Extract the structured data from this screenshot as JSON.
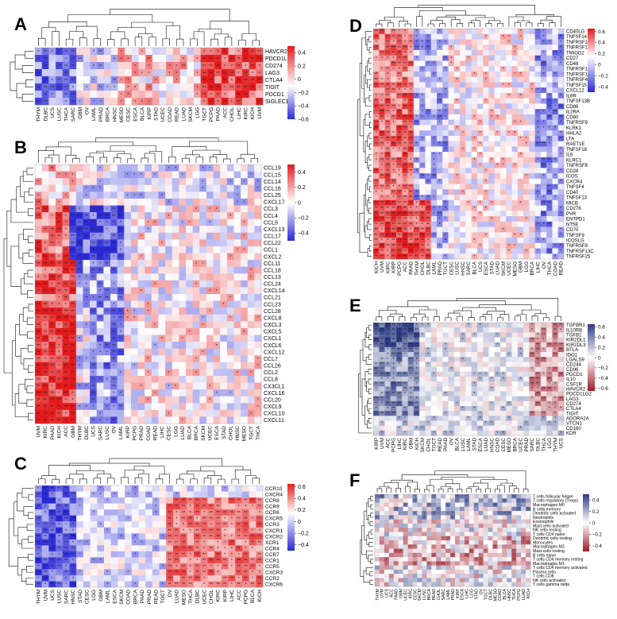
{
  "cancers": [
    "ACC",
    "BLCA",
    "BRCA",
    "CESC",
    "CHOL",
    "COAD",
    "DLBC",
    "ESCA",
    "GBM",
    "HNSC",
    "KICH",
    "KIRC",
    "KIRP",
    "LAML",
    "LGG",
    "LIHC",
    "LUAD",
    "LUSC",
    "MESO",
    "OV",
    "PAAD",
    "PCPG",
    "PRAD",
    "READ",
    "SARC",
    "SKCM",
    "STAD",
    "TGCT",
    "THCA",
    "THYM",
    "UCEC",
    "UCS",
    "UVM"
  ],
  "colors": {
    "red": "#e31a1c",
    "blue": "#2b2bd6",
    "white": "#ffffff",
    "navy": "#2c3b84",
    "crimson": "#9e1a2a"
  },
  "chart_data": [
    {
      "id": "A",
      "type": "heatmap",
      "letter": "A",
      "cols": [
        "THYM",
        "DLBC",
        "UCS",
        "LUSC",
        "THCA",
        "SARC",
        "GBM",
        "OV",
        "LAML",
        "PRAD",
        "BRCA",
        "HNSC",
        "MESO",
        "CESC",
        "ESCA",
        "BLCA",
        "KIRP",
        "STAD",
        "UCEC",
        "COAD",
        "READ",
        "LUAD",
        "SKCM",
        "LGG",
        "TGCT",
        "PCPG",
        "PAAD",
        "ACC",
        "CHOL",
        "LIHC",
        "KIRC",
        "KICH",
        "UVM"
      ],
      "rows": [
        "HAVCR2",
        "PDCD1LG2",
        "CD274",
        "LAG3",
        "CTLA4",
        "TIGIT",
        "PDCD1",
        "SIGLEC15"
      ],
      "legend": {
        "ticks": [
          "0.4",
          "0.2",
          "0",
          "−0.2",
          "−0.4",
          "−0.6"
        ]
      },
      "ylim": [
        -0.6,
        0.5
      ]
    },
    {
      "id": "B",
      "type": "heatmap",
      "letter": "B",
      "cols": [
        "UVM",
        "KIRC",
        "PAAD",
        "KICH",
        "ACC",
        "GBM",
        "THYM",
        "DLBC",
        "UCS",
        "SARC",
        "LUSC",
        "OV",
        "LAML",
        "KIRP",
        "PCPG",
        "PRAD",
        "COAD",
        "READ",
        "LIHC",
        "CESC",
        "LGG",
        "LUAD",
        "BLCA",
        "BRCA",
        "SKCM",
        "UCEC",
        "ESCA",
        "STAD",
        "CHOL",
        "HNSC",
        "MESO",
        "TGCT",
        "THCA"
      ],
      "rows": [
        "CCL19",
        "CCL15",
        "CCL14",
        "CCL16",
        "CCL25",
        "CXCL17",
        "CCL3",
        "CCL4",
        "CCL5",
        "CXCL13",
        "CCL17",
        "CCL22",
        "CCL1",
        "CXCL2",
        "CCL11",
        "CCL18",
        "CCL13",
        "CCL24",
        "CXCL14",
        "CCL21",
        "CCL23",
        "CCL28",
        "CXCL8",
        "CXCL3",
        "CXCL5",
        "CXCL1",
        "CXCL6",
        "CXCL12",
        "CCL7",
        "CCL26",
        "CCL2",
        "CCL8",
        "CX3CL1",
        "CXCL16",
        "CCL20",
        "CXCL9",
        "CXCL10",
        "CXCL11"
      ],
      "legend": {
        "ticks": [
          "0.4",
          "0.2",
          "0",
          "−0.2",
          "−0.4"
        ]
      },
      "ylim": [
        -0.5,
        0.5
      ]
    },
    {
      "id": "C",
      "type": "heatmap",
      "letter": "C",
      "cols": [
        "THYM",
        "UVM",
        "UCS",
        "LUSC",
        "SARC",
        "HNSC",
        "STAD",
        "CESC",
        "LGG",
        "GBM",
        "LAML",
        "ESCA",
        "SKCM",
        "COAD",
        "BRCA",
        "PAAD",
        "PRAD",
        "READ",
        "TGCT",
        "OV",
        "LUAD",
        "MESO",
        "THCA",
        "DLBC",
        "UCEC",
        "CHOL",
        "KIRC",
        "KIRP",
        "LIHC",
        "ACC",
        "PCPG",
        "BLCA",
        "KICH"
      ],
      "rows": [
        "CCR10",
        "CXCR4",
        "CCR8",
        "CCR9",
        "CCR6",
        "CXCR5",
        "CCR3",
        "CXCR1",
        "CXCR2",
        "XCR1",
        "CCR4",
        "CCR7",
        "CCR1",
        "CCR5",
        "CXCR3",
        "CCR2",
        "CXCR6"
      ],
      "legend": {
        "ticks": [
          "0.6",
          "0.4",
          "0.2",
          "0",
          "−0.2",
          "−0.4"
        ]
      },
      "ylim": [
        -0.5,
        0.65
      ]
    },
    {
      "id": "D",
      "type": "heatmap",
      "letter": "D",
      "cols": [
        "KICH",
        "UVM",
        "KIRC",
        "KIRP",
        "PCPG",
        "ACC",
        "PAAD",
        "THYM",
        "CHOL",
        "DLBC",
        "LAML",
        "PRAD",
        "TGCT",
        "CESC",
        "LUSC",
        "HNSC",
        "SARC",
        "BLCA",
        "UCS",
        "ESCA",
        "STAD",
        "LUAD",
        "SKCM",
        "UCEC",
        "MESO",
        "GBM",
        "LGG",
        "BRCA",
        "LIHC",
        "OV",
        "THCA",
        "COAD",
        "READ"
      ],
      "rows": [
        "CD40LG",
        "TNFSF14",
        "TNFRSF13B",
        "TNFRSF17",
        "TMIGD2",
        "CD27",
        "CD48",
        "TNFRSF14",
        "TNFRSF18",
        "TNFRSF4",
        "TNFSF15",
        "CXCL12",
        "IL6R",
        "TNFSF13B",
        "CD86",
        "IL2RA",
        "CD80",
        "TNFRSF9",
        "KLRK1",
        "HHLA2",
        "LTA",
        "RAET1E",
        "TNFSF18",
        "IL6",
        "KLRC1",
        "TNFRSF8",
        "CD28",
        "ICOS",
        "CXCR4",
        "TNFSF4",
        "CD40",
        "TNFSF13",
        "MICB",
        "CD276",
        "PVR",
        "ENTPD1",
        "NT5E",
        "CD70",
        "TNFSF9",
        "ICOSLG",
        "TNFRSF8",
        "TNFRSF13C",
        "TNFRSF25"
      ],
      "legend": {
        "ticks": [
          "0.6",
          "0.4",
          "0.2",
          "0",
          "−0.2",
          "−0.4"
        ]
      },
      "ylim": [
        -0.5,
        0.65
      ]
    },
    {
      "id": "E",
      "type": "heatmap",
      "letter": "E",
      "cols": [
        "KIRP",
        "UVM",
        "ACC",
        "PCPG",
        "LIHC",
        "KIRC",
        "GBM",
        "KICH",
        "SKCM",
        "CHOL",
        "TGCT",
        "READ",
        "PAAD",
        "OV",
        "BLCA",
        "LUSC",
        "LAML",
        "STAD",
        "ESCA",
        "LUAD",
        "HNSC",
        "COAD",
        "CESC",
        "MESO",
        "BRCA",
        "UCEC",
        "PRAD",
        "SARC",
        "DLBC",
        "THCA",
        "LGG",
        "THYM",
        "UCS"
      ],
      "rows": [
        "TGFBR1",
        "IL10RB",
        "TGFB1",
        "KIR2DL1",
        "KIR2DL3",
        "BTLA",
        "IDO1",
        "LGALS9",
        "CD244",
        "CD96",
        "PDCD1",
        "IL10",
        "CSF1R",
        "HAVCR2",
        "PDCD1LG2",
        "LAG3",
        "CD274",
        "CTLA4",
        "TIGIT",
        "ADORA2A",
        "VTCN1",
        "CD160",
        "KDR"
      ],
      "legend": {
        "ticks": [
          "0.6",
          "0.4",
          "0.2",
          "0",
          "−0.2",
          "−0.4",
          "−0.6"
        ]
      },
      "ylim": [
        -0.65,
        0.65
      ]
    },
    {
      "id": "F",
      "type": "heatmap",
      "letter": "F",
      "cols": [
        "THYM",
        "UVM",
        "UCS",
        "ACC",
        "PAAD",
        "GBM",
        "UCEC",
        "KIRC",
        "CESC",
        "SKCM",
        "LUSC",
        "BRCA",
        "READ",
        "CHOL",
        "SARC",
        "LAML",
        "PRAD",
        "KIRP",
        "ESCA",
        "LIHC",
        "LGG",
        "STAD",
        "OV",
        "TGCT",
        "DLBC",
        "MESO",
        "COAD",
        "BLCA",
        "HNSC",
        "THCA",
        "PCPG",
        "LUAD",
        "KICH"
      ],
      "rows": [
        "T cells follicular helper",
        "T cells regulatory (Tregs)",
        "Macrophages M0",
        "B cells memory",
        "Dendritic cells activated",
        "Neutrophils",
        "Eosinophils",
        "Mast cells activated",
        "NK cells resting",
        "T cells CD4 naive",
        "Dendritic cells resting",
        "Monocytes",
        "Macrophages M2",
        "Mast cells resting",
        "B cells naive",
        "T cells CD4 memory resting",
        "Macrophages M1",
        "T cells CD4 memory activated",
        "Plasma cells",
        "T cells CD8",
        "NK cells activated",
        "T cells gamma delta"
      ],
      "legend": {
        "ticks": [
          "0.4",
          "0.2",
          "0",
          "−0.2",
          "−0.4"
        ]
      },
      "ylim": [
        -0.5,
        0.5
      ]
    }
  ]
}
